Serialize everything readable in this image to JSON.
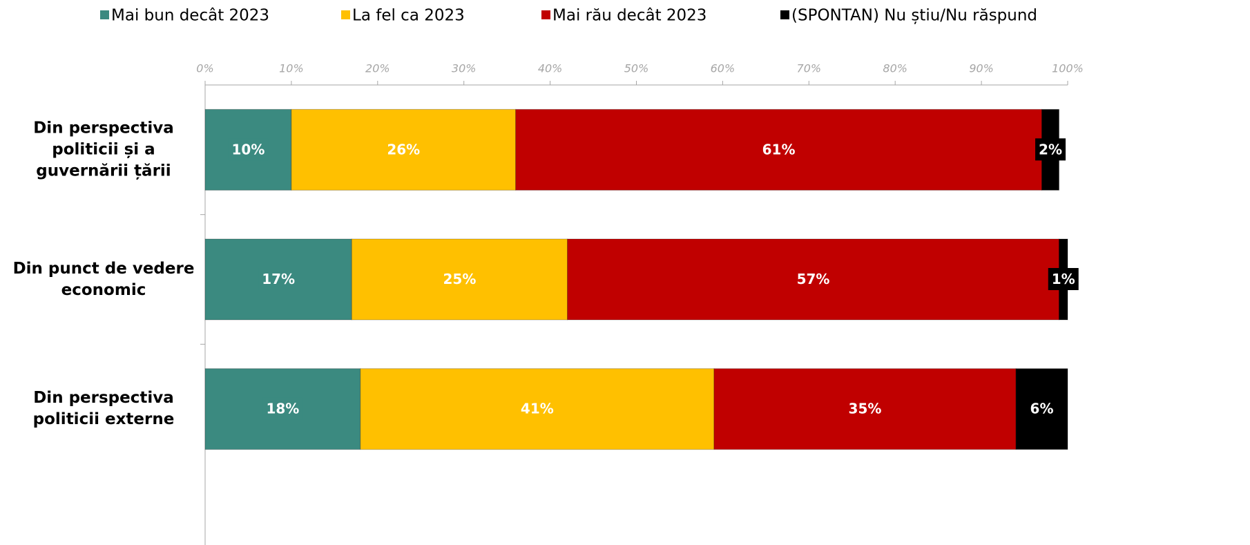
{
  "chart_data": {
    "type": "stacked-bar-horizontal",
    "categories": [
      "Din perspectiva\npoliticii și a\nguvernării țării",
      "Din punct de vedere\neconomic",
      "Din perspectiva\npoliticii externe"
    ],
    "series": [
      {
        "name": "Mai bun decât 2023",
        "color": "#3b8a80",
        "values": [
          10,
          17,
          18
        ],
        "value_labels": [
          "10%",
          "17%",
          "18%"
        ]
      },
      {
        "name": "La fel ca 2023",
        "color": "#ffc000",
        "values": [
          26,
          25,
          41
        ],
        "value_labels": [
          "26%",
          "25%",
          "41%"
        ]
      },
      {
        "name": "Mai rău decât 2023",
        "color": "#c00000",
        "values": [
          61,
          57,
          35
        ],
        "value_labels": [
          "61%",
          "57%",
          "35%"
        ]
      },
      {
        "name": "(SPONTAN) Nu știu/Nu răspund",
        "color": "#000000",
        "values": [
          2,
          1,
          6
        ],
        "value_labels": [
          "2%",
          "1%",
          "6%"
        ]
      }
    ],
    "xlim": [
      0,
      100
    ],
    "xticks": [
      {
        "value": 0,
        "label": "0%"
      },
      {
        "value": 10,
        "label": "10%"
      },
      {
        "value": 20,
        "label": "20%"
      },
      {
        "value": 30,
        "label": "30%"
      },
      {
        "value": 40,
        "label": "40%"
      },
      {
        "value": 50,
        "label": "50%"
      },
      {
        "value": 60,
        "label": "60%"
      },
      {
        "value": 70,
        "label": "70%"
      },
      {
        "value": 80,
        "label": "80%"
      },
      {
        "value": 90,
        "label": "90%"
      },
      {
        "value": 100,
        "label": "100%"
      }
    ],
    "legend": "top"
  }
}
